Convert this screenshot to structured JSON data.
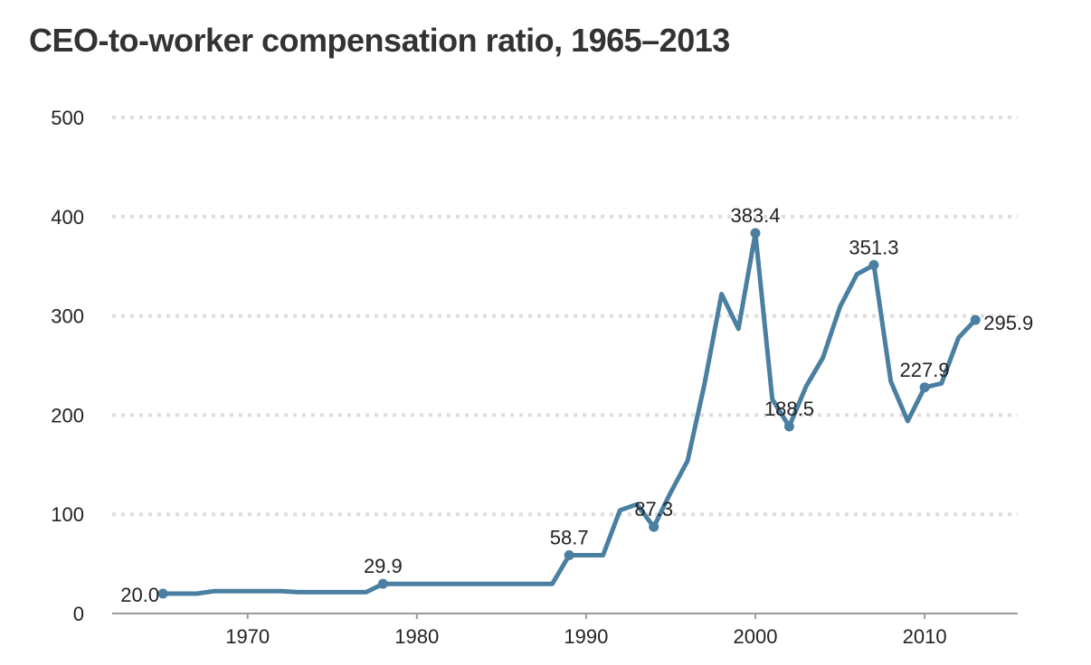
{
  "chart_data": {
    "type": "line",
    "title": "CEO-to-worker compensation ratio, 1965–2013",
    "xlabel": "",
    "ylabel": "",
    "xlim": [
      1962.0,
      2015.5
    ],
    "ylim": [
      0,
      500
    ],
    "x_ticks": [
      1970,
      1980,
      1990,
      2000,
      2010
    ],
    "y_ticks": [
      0,
      100,
      200,
      300,
      400,
      500
    ],
    "grid": true,
    "legend": "none",
    "line_color": "#4a7fa1",
    "grid_color": "#dddddd",
    "text_color": "#222222",
    "series": [
      {
        "x": [
          1965,
          1966,
          1967,
          1968,
          1969,
          1970,
          1971,
          1972,
          1973,
          1974,
          1975,
          1976,
          1977,
          1978,
          1979,
          1980,
          1981,
          1982,
          1983,
          1984,
          1985,
          1986,
          1987,
          1988,
          1989,
          1990,
          1991,
          1992,
          1993,
          1994,
          1995,
          1996,
          1997,
          1998,
          1999,
          2000,
          2001,
          2002,
          2003,
          2004,
          2005,
          2006,
          2007,
          2008,
          2009,
          2010,
          2011,
          2012,
          2013
        ],
        "values": [
          20.0,
          20,
          20,
          22.5,
          22.5,
          22.5,
          22.5,
          22.5,
          21.5,
          21.5,
          21.5,
          21.5,
          21.5,
          29.9,
          29.9,
          29.9,
          29.9,
          29.9,
          29.9,
          29.9,
          29.9,
          29.9,
          29.9,
          29.9,
          58.7,
          58.7,
          58.7,
          104,
          110,
          87.3,
          122,
          154,
          232,
          322,
          287,
          383.4,
          216,
          188.5,
          229,
          258,
          309,
          342,
          351.3,
          234,
          194,
          227.9,
          232,
          278,
          295.9
        ]
      }
    ],
    "annotations": [
      {
        "x": 1965,
        "y": 20.0,
        "label": "20.0",
        "pos": "left"
      },
      {
        "x": 1978,
        "y": 29.9,
        "label": "29.9",
        "pos": "above"
      },
      {
        "x": 1989,
        "y": 58.7,
        "label": "58.7",
        "pos": "above"
      },
      {
        "x": 1994,
        "y": 87.3,
        "label": "87.3",
        "pos": "above"
      },
      {
        "x": 2000,
        "y": 383.4,
        "label": "383.4",
        "pos": "above"
      },
      {
        "x": 2002,
        "y": 188.5,
        "label": "188.5",
        "pos": "above"
      },
      {
        "x": 2007,
        "y": 351.3,
        "label": "351.3",
        "pos": "above"
      },
      {
        "x": 2010,
        "y": 227.9,
        "label": "227.9",
        "pos": "above"
      },
      {
        "x": 2013,
        "y": 295.9,
        "label": "295.9",
        "pos": "right"
      }
    ]
  }
}
